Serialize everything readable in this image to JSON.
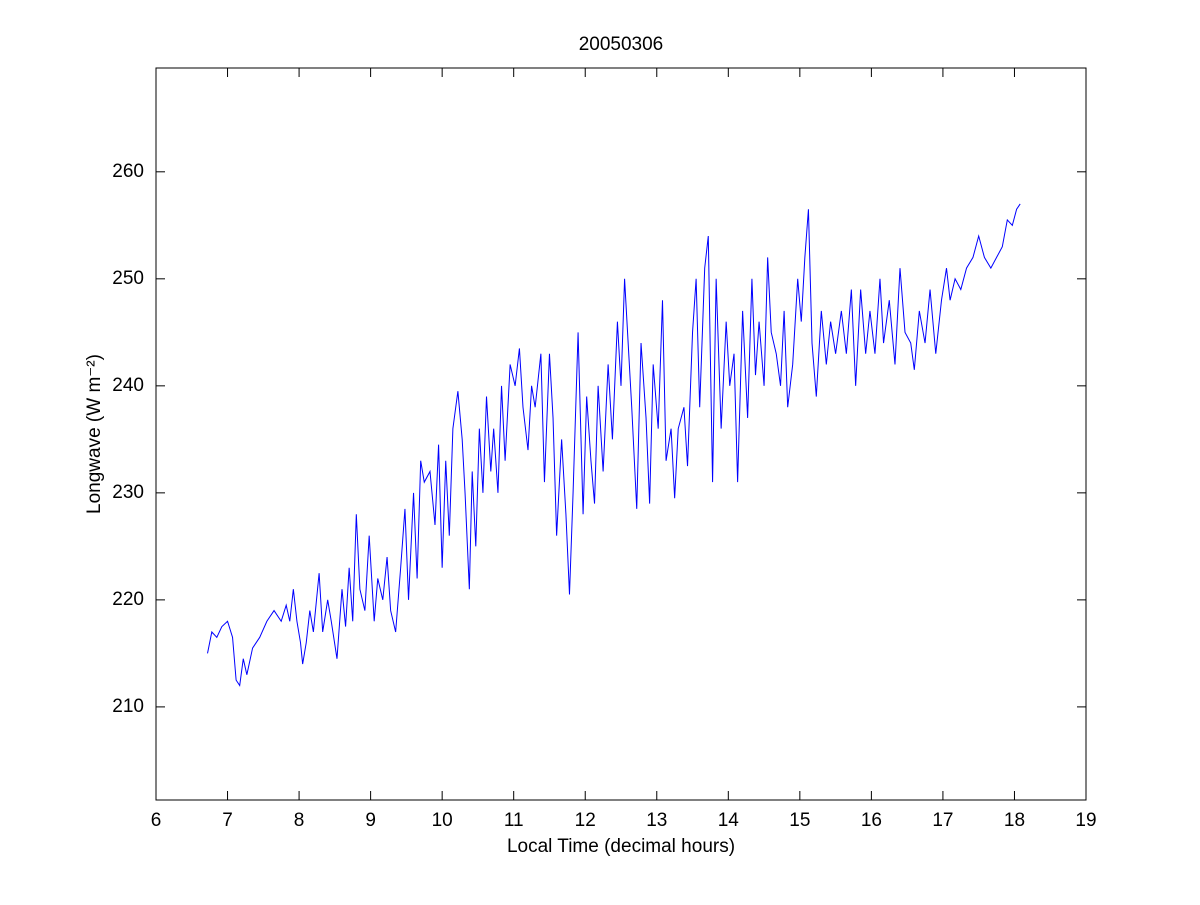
{
  "chart_data": {
    "type": "line",
    "title": "20050306",
    "xlabel": "Local Time (decimal hours)",
    "ylabel": "Longwave (W m⁻²)",
    "xlim": [
      6,
      19
    ],
    "xticks": [
      6,
      7,
      8,
      9,
      10,
      11,
      12,
      13,
      14,
      15,
      16,
      17,
      18,
      19
    ],
    "ylim": [
      201.3,
      269.7
    ],
    "yticks": [
      210,
      220,
      230,
      240,
      250,
      260
    ],
    "grid": false,
    "series": [
      {
        "color": "#0000ff",
        "x": [
          6.72,
          6.78,
          6.85,
          6.92,
          7.0,
          7.07,
          7.12,
          7.17,
          7.22,
          7.27,
          7.35,
          7.45,
          7.55,
          7.65,
          7.75,
          7.82,
          7.87,
          7.92,
          7.97,
          8.02,
          8.05,
          8.1,
          8.15,
          8.2,
          8.28,
          8.33,
          8.4,
          8.45,
          8.53,
          8.6,
          8.65,
          8.7,
          8.75,
          8.8,
          8.85,
          8.92,
          8.98,
          9.05,
          9.1,
          9.17,
          9.23,
          9.28,
          9.35,
          9.42,
          9.48,
          9.53,
          9.6,
          9.65,
          9.7,
          9.75,
          9.83,
          9.9,
          9.95,
          10.0,
          10.05,
          10.1,
          10.15,
          10.22,
          10.28,
          10.32,
          10.38,
          10.42,
          10.47,
          10.52,
          10.57,
          10.62,
          10.68,
          10.72,
          10.78,
          10.83,
          10.88,
          10.95,
          11.02,
          11.08,
          11.13,
          11.2,
          11.25,
          11.3,
          11.38,
          11.43,
          11.5,
          11.55,
          11.6,
          11.67,
          11.73,
          11.78,
          11.83,
          11.9,
          11.97,
          12.02,
          12.08,
          12.13,
          12.18,
          12.25,
          12.32,
          12.38,
          12.45,
          12.5,
          12.55,
          12.6,
          12.65,
          12.72,
          12.78,
          12.85,
          12.9,
          12.95,
          13.02,
          13.08,
          13.13,
          13.2,
          13.25,
          13.3,
          13.38,
          13.43,
          13.5,
          13.55,
          13.6,
          13.67,
          13.72,
          13.78,
          13.83,
          13.9,
          13.97,
          14.02,
          14.08,
          14.13,
          14.2,
          14.27,
          14.33,
          14.38,
          14.43,
          14.5,
          14.55,
          14.6,
          14.67,
          14.73,
          14.78,
          14.83,
          14.9,
          14.97,
          15.02,
          15.07,
          15.12,
          15.17,
          15.23,
          15.3,
          15.37,
          15.43,
          15.5,
          15.58,
          15.65,
          15.72,
          15.78,
          15.85,
          15.92,
          15.98,
          16.05,
          16.12,
          16.17,
          16.25,
          16.33,
          16.4,
          16.47,
          16.55,
          16.6,
          16.67,
          16.75,
          16.82,
          16.9,
          16.98,
          17.05,
          17.1,
          17.17,
          17.25,
          17.33,
          17.42,
          17.5,
          17.58,
          17.67,
          17.75,
          17.83,
          17.9,
          17.97,
          18.03,
          18.08
        ],
        "values": [
          215,
          217,
          216.5,
          217.5,
          218,
          216.5,
          212.5,
          212,
          214.5,
          213,
          215.5,
          216.5,
          218,
          219,
          218,
          219.5,
          218,
          221,
          218,
          216,
          214,
          216,
          219,
          217,
          222.5,
          217,
          220,
          218,
          214.5,
          221,
          217.5,
          223,
          218,
          228,
          221,
          219,
          226,
          218,
          222,
          220,
          224,
          219,
          217,
          223,
          228.5,
          220,
          230,
          222,
          233,
          231,
          232,
          227,
          234.5,
          223,
          233,
          226,
          236,
          239.5,
          235,
          230,
          221,
          232,
          225,
          236,
          230,
          239,
          232,
          236,
          230,
          240,
          233,
          242,
          240,
          243.5,
          238,
          234,
          240,
          238,
          243,
          231,
          243,
          237,
          226,
          235,
          228,
          220.5,
          230,
          245,
          228,
          239,
          233,
          229,
          240,
          232,
          242,
          235,
          246,
          240,
          250,
          244,
          238,
          228.5,
          244,
          237,
          229,
          242,
          236,
          248,
          233,
          236,
          229.5,
          236,
          238,
          232.5,
          245,
          250,
          238,
          251,
          254,
          231,
          250,
          236,
          246,
          240,
          243,
          231,
          247,
          237,
          250,
          241,
          246,
          240,
          252,
          245,
          243,
          240,
          247,
          238,
          242,
          250,
          246,
          252,
          256.5,
          244,
          239,
          247,
          242,
          246,
          243,
          247,
          243,
          249,
          240,
          249,
          243,
          247,
          243,
          250,
          244,
          248,
          242,
          251,
          245,
          244,
          241.5,
          247,
          244,
          249,
          243,
          248,
          251,
          248,
          250,
          249,
          251,
          252,
          254,
          252,
          251,
          252,
          253,
          255.5,
          255,
          256.5,
          257
        ]
      }
    ]
  }
}
